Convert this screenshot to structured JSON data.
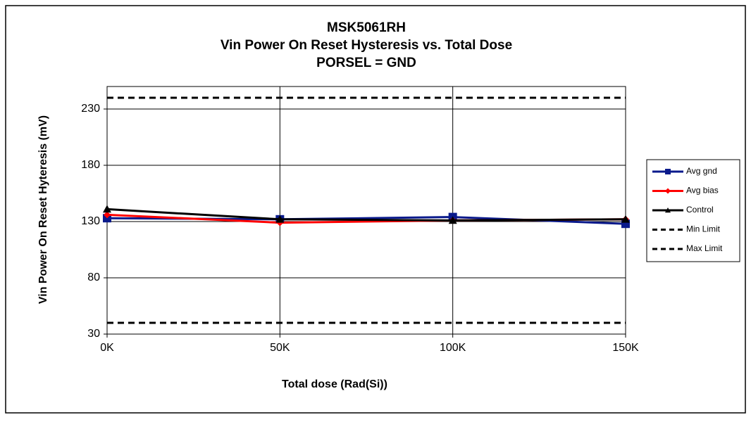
{
  "chart_data": {
    "type": "line",
    "title": [
      "MSK5061RH",
      "Vin Power On Reset Hysteresis vs. Total Dose",
      "PORSEL = GND"
    ],
    "x_label": "Total dose (Rad(Si))",
    "y_label": "Vin Power On Reset Hyteresis (mV)",
    "categories": [
      "0K",
      "50K",
      "100K",
      "150K"
    ],
    "series": [
      {
        "name": "Avg gnd",
        "color": "#0a1a8c",
        "marker": "square",
        "values": [
          133,
          132,
          134,
          128
        ]
      },
      {
        "name": "Avg bias",
        "color": "#ff0000",
        "marker": "diamond",
        "values": [
          136,
          129,
          131,
          132
        ]
      },
      {
        "name": "Control",
        "color": "#000000",
        "marker": "triangle",
        "values": [
          141,
          132,
          131,
          132
        ]
      },
      {
        "name": "Min Limit",
        "color": "#000000",
        "dashed": true,
        "values": [
          40,
          40,
          40,
          40
        ]
      },
      {
        "name": "Max Limit",
        "color": "#000000",
        "dashed": true,
        "values": [
          240,
          240,
          240,
          240
        ]
      }
    ],
    "ylim": [
      30,
      250
    ],
    "yticks": [
      30,
      80,
      130,
      180,
      230
    ],
    "grid": true,
    "legend": "right"
  }
}
